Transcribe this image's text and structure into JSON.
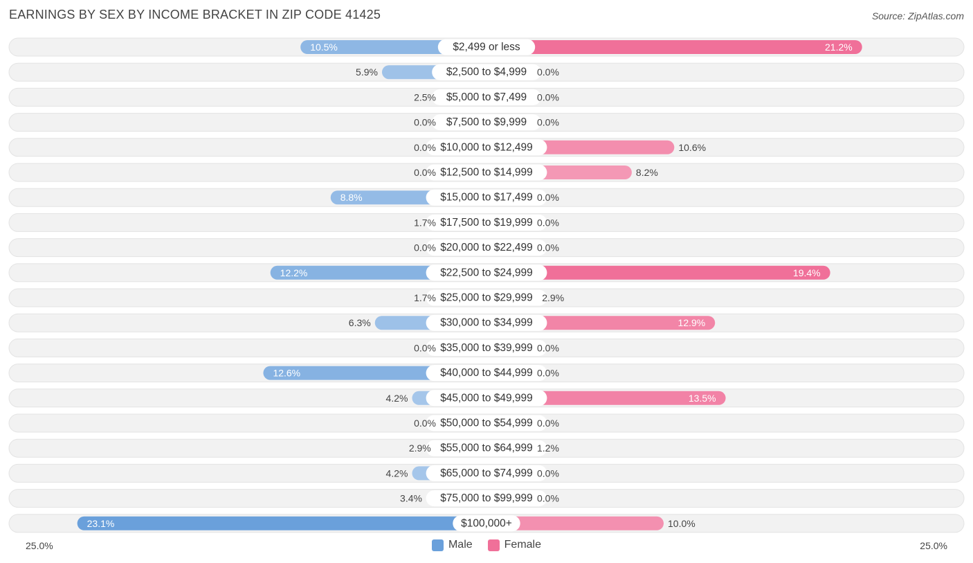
{
  "title": "EARNINGS BY SEX BY INCOME BRACKET IN ZIP CODE 41425",
  "source": "Source: ZipAtlas.com",
  "colors": {
    "male": "#8ab4e3",
    "male_strong": "#6aa0db",
    "female": "#f4a3bd",
    "female_strong": "#f07099",
    "track": "#eeeeee"
  },
  "legend": {
    "male": "Male",
    "female": "Female"
  },
  "axis": {
    "left_label": "25.0%",
    "right_label": "25.0%"
  },
  "chart_data": {
    "type": "bar",
    "orientation": "diverging-horizontal",
    "title": "EARNINGS BY SEX BY INCOME BRACKET IN ZIP CODE 41425",
    "xlim": [
      -25,
      25
    ],
    "categories": [
      "$2,499 or less",
      "$2,500 to $4,999",
      "$5,000 to $7,499",
      "$7,500 to $9,999",
      "$10,000 to $12,499",
      "$12,500 to $14,999",
      "$15,000 to $17,499",
      "$17,500 to $19,999",
      "$20,000 to $22,499",
      "$22,500 to $24,999",
      "$25,000 to $29,999",
      "$30,000 to $34,999",
      "$35,000 to $39,999",
      "$40,000 to $44,999",
      "$45,000 to $49,999",
      "$50,000 to $54,999",
      "$55,000 to $64,999",
      "$65,000 to $74,999",
      "$75,000 to $99,999",
      "$100,000+"
    ],
    "series": [
      {
        "name": "Male",
        "values": [
          10.5,
          5.9,
          2.5,
          0.0,
          0.0,
          0.0,
          8.8,
          1.7,
          0.0,
          12.2,
          1.7,
          6.3,
          0.0,
          12.6,
          4.2,
          0.0,
          2.9,
          4.2,
          3.4,
          23.1
        ]
      },
      {
        "name": "Female",
        "values": [
          21.2,
          0.0,
          0.0,
          0.0,
          10.6,
          8.2,
          0.0,
          0.0,
          0.0,
          19.4,
          2.9,
          12.9,
          0.0,
          0.0,
          13.5,
          0.0,
          1.2,
          0.0,
          0.0,
          10.0
        ]
      }
    ],
    "value_labels": {
      "male": [
        "10.5%",
        "5.9%",
        "2.5%",
        "0.0%",
        "0.0%",
        "0.0%",
        "8.8%",
        "1.7%",
        "0.0%",
        "12.2%",
        "1.7%",
        "6.3%",
        "0.0%",
        "12.6%",
        "4.2%",
        "0.0%",
        "2.9%",
        "4.2%",
        "3.4%",
        "23.1%"
      ],
      "female": [
        "21.2%",
        "0.0%",
        "0.0%",
        "0.0%",
        "10.6%",
        "8.2%",
        "0.0%",
        "0.0%",
        "0.0%",
        "19.4%",
        "2.9%",
        "12.9%",
        "0.0%",
        "0.0%",
        "13.5%",
        "0.0%",
        "1.2%",
        "0.0%",
        "0.0%",
        "10.0%"
      ]
    }
  }
}
